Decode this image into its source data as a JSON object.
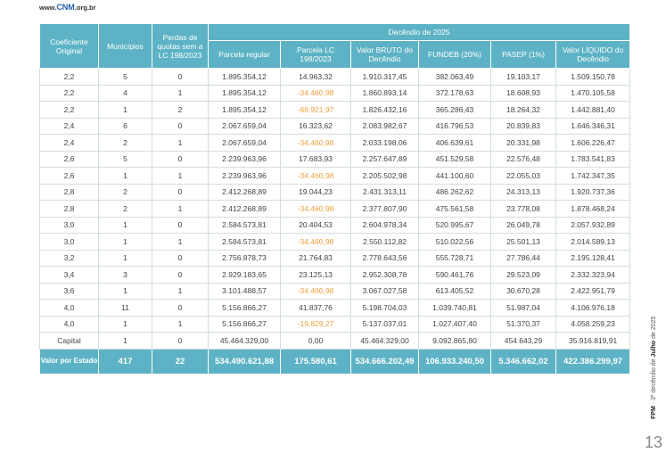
{
  "header": {
    "site": {
      "prefix": "www.",
      "brand": "CNM",
      "suffix": ".org.br"
    }
  },
  "table": {
    "columns": [
      "Coeficiente Original",
      "Municípios",
      "Perdas de quotas sem a LC 198/2023"
    ],
    "group_header": "Decêndio de 2025",
    "group_columns": [
      "Parcela regular",
      "Parcela LC 198/2023",
      "Valor BRUTO do Decêndio",
      "FUNDEB (20%)",
      "PASEP (1%)",
      "Valor LÍQUIDO do Decêndio"
    ],
    "rows": [
      [
        "2,2",
        "5",
        "0",
        "1.895.354,12",
        "14.963,32",
        "1.910.317,45",
        "382.063,49",
        "19.103,17",
        "1.509.150,78"
      ],
      [
        "2,2",
        "4",
        "1",
        "1.895.354,12",
        "-34.460,98",
        "1.860.893,14",
        "372.178,63",
        "18.608,93",
        "1.470.105,58"
      ],
      [
        "2,2",
        "1",
        "2",
        "1.895.354,12",
        "-68.921,97",
        "1.826.432,16",
        "365.286,43",
        "18.264,32",
        "1.442.881,40"
      ],
      [
        "2,4",
        "6",
        "0",
        "2.067.659,04",
        "16.323,62",
        "2.083.982,67",
        "416.796,53",
        "20.839,83",
        "1.646.346,31"
      ],
      [
        "2,4",
        "2",
        "1",
        "2.067.659,04",
        "-34.460,98",
        "2.033.198,06",
        "406.639,61",
        "20.331,98",
        "1.606.226,47"
      ],
      [
        "2,6",
        "5",
        "0",
        "2.239.963,96",
        "17.683,93",
        "2.257.647,89",
        "451.529,58",
        "22.576,48",
        "1.783.541,83"
      ],
      [
        "2,6",
        "1",
        "1",
        "2.239.963,96",
        "-34.460,98",
        "2.205.502,98",
        "441.100,60",
        "22.055,03",
        "1.742.347,35"
      ],
      [
        "2,8",
        "2",
        "0",
        "2.412.268,89",
        "19.044,23",
        "2.431.313,11",
        "486.262,62",
        "24.313,13",
        "1.920.737,36"
      ],
      [
        "2,8",
        "2",
        "1",
        "2.412.268,89",
        "-34.460,98",
        "2.377.807,90",
        "475.561,58",
        "23.778,08",
        "1.878.468,24"
      ],
      [
        "3,0",
        "1",
        "0",
        "2.584.573,81",
        "20.404,53",
        "2.604.978,34",
        "520.995,67",
        "26.049,78",
        "2.057.932,89"
      ],
      [
        "3,0",
        "1",
        "1",
        "2.584.573,81",
        "-34.460,98",
        "2.550.112,82",
        "510.022,56",
        "25.501,13",
        "2.014.589,13"
      ],
      [
        "3,2",
        "1",
        "0",
        "2.756.878,73",
        "21.764,83",
        "2.778.643,56",
        "555.728,71",
        "27.786,44",
        "2.195.128,41"
      ],
      [
        "3,4",
        "3",
        "0",
        "2.929.183,65",
        "23.125,13",
        "2.952.308,78",
        "590.461,76",
        "29.523,09",
        "2.332.323,94"
      ],
      [
        "3,6",
        "1",
        "1",
        "3.101.488,57",
        "-34.460,98",
        "3.067.027,58",
        "613.405,52",
        "30.670,28",
        "2.422.951,79"
      ],
      [
        "4,0",
        "11",
        "0",
        "5.156.866,27",
        "41.837,76",
        "5.198.704,03",
        "1.039.740,81",
        "51.987,04",
        "4.106.976,18"
      ],
      [
        "4,0",
        "1",
        "1",
        "5.156.866,27",
        "-19.829,27",
        "5.137.037,01",
        "1.027.407,40",
        "51.370,37",
        "4.058.259,23"
      ],
      [
        "Capital",
        "1",
        "0",
        "45.464.329,00",
        "0,00",
        "45.464.329,00",
        "9.092.865,80",
        "454.643,29",
        "35.916.819,91"
      ]
    ],
    "total": [
      "Valor por Estado",
      "417",
      "22",
      "534.490.621,88",
      "175.580,61",
      "534.666.202,49",
      "106.933.240,50",
      "5.346.662,02",
      "422.386.299,97"
    ]
  },
  "side": {
    "label": "FPM",
    "text": "3º decêndio de",
    "month": "Julho",
    "year": "de 2025"
  },
  "page_number": "13"
}
